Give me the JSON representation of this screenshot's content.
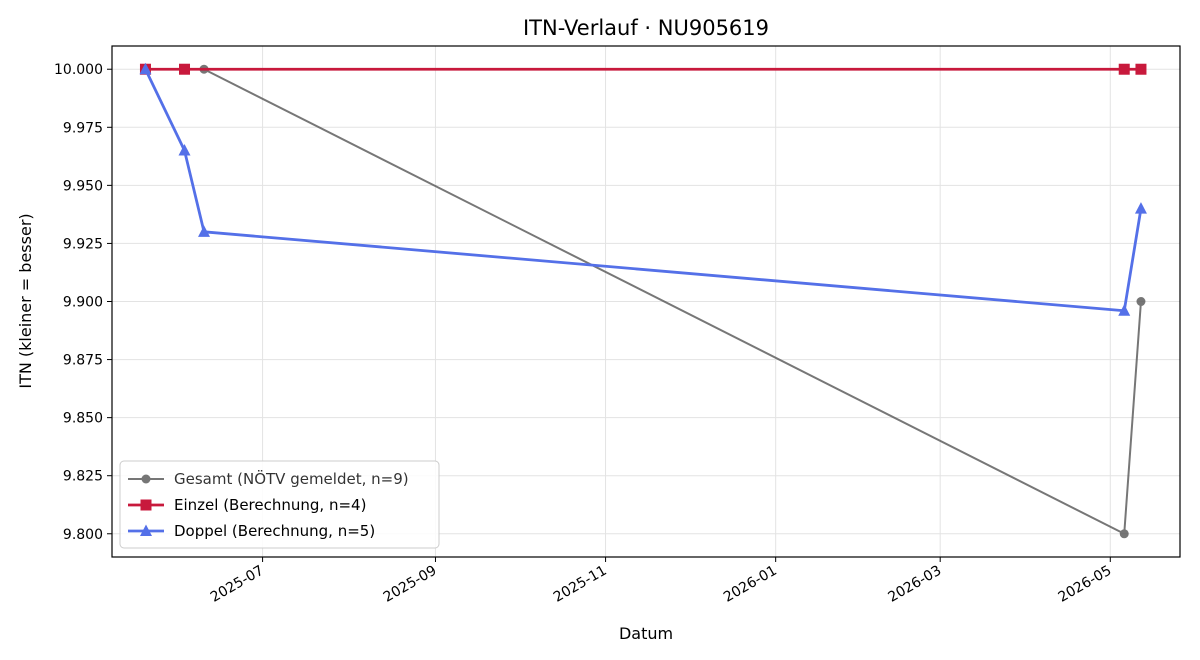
{
  "chart_data": {
    "type": "line",
    "title": "ITN-Verlauf · NU905619",
    "xlabel": "Datum",
    "ylabel": "ITN  (kleiner = besser)",
    "x_axis": {
      "type": "date",
      "range": [
        "2025-05-08",
        "2026-05-26"
      ],
      "ticks": [
        "2025-07-01",
        "2025-09-01",
        "2025-11-01",
        "2026-01-01",
        "2026-03-01",
        "2026-05-01"
      ],
      "tick_labels": [
        "2025-07",
        "2025-09",
        "2025-11",
        "2026-01",
        "2026-03",
        "2026-05"
      ]
    },
    "y_axis": {
      "range": [
        9.79,
        10.01
      ],
      "ticks": [
        9.8,
        9.825,
        9.85,
        9.875,
        9.9,
        9.925,
        9.95,
        9.975,
        10.0
      ],
      "tick_labels": [
        "9.800",
        "9.825",
        "9.850",
        "9.875",
        "9.900",
        "9.925",
        "9.950",
        "9.975",
        "10.000"
      ]
    },
    "grid": true,
    "legend_position": "bottom-left",
    "series": [
      {
        "name": "Gesamt (NÖTV gemeldet, n=9)",
        "color": "#555555",
        "marker": "circle",
        "points": [
          {
            "x": "2025-06-10",
            "y": 10.0
          },
          {
            "x": "2026-05-06",
            "y": 9.8
          },
          {
            "x": "2026-05-12",
            "y": 9.9
          }
        ]
      },
      {
        "name": "Einzel (Berechnung, n=4)",
        "color": "#c8193c",
        "marker": "square",
        "points": [
          {
            "x": "2025-05-20",
            "y": 10.0
          },
          {
            "x": "2025-06-03",
            "y": 10.0
          },
          {
            "x": "2026-05-06",
            "y": 10.0
          },
          {
            "x": "2026-05-12",
            "y": 10.0
          }
        ]
      },
      {
        "name": "Doppel (Berechnung, n=5)",
        "color": "#5470e8",
        "marker": "triangle",
        "points": [
          {
            "x": "2025-05-20",
            "y": 10.0
          },
          {
            "x": "2025-06-03",
            "y": 9.965
          },
          {
            "x": "2025-06-10",
            "y": 9.93
          },
          {
            "x": "2026-05-06",
            "y": 9.896
          },
          {
            "x": "2026-05-12",
            "y": 9.94
          }
        ]
      }
    ]
  }
}
